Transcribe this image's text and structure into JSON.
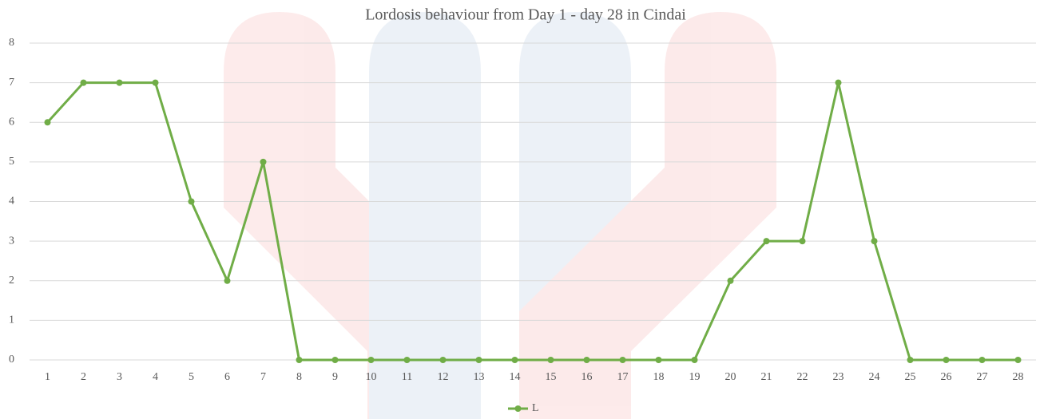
{
  "chart_data": {
    "type": "line",
    "title": "Lordosis behaviour from Day 1 - day 28 in Cindai",
    "categories": [
      "1",
      "2",
      "3",
      "4",
      "5",
      "6",
      "7",
      "8",
      "9",
      "10",
      "11",
      "12",
      "13",
      "14",
      "15",
      "16",
      "17",
      "18",
      "19",
      "20",
      "21",
      "22",
      "23",
      "24",
      "25",
      "26",
      "27",
      "28"
    ],
    "series": [
      {
        "name": "L",
        "color": "#70ad47",
        "values": [
          6,
          7,
          7,
          7,
          4,
          2,
          5,
          0,
          0,
          0,
          0,
          0,
          0,
          0,
          0,
          0,
          0,
          0,
          0,
          2,
          3,
          3,
          7,
          3,
          0,
          0,
          0,
          0
        ]
      }
    ],
    "ylim": [
      0,
      8
    ],
    "yticks": [
      0,
      1,
      2,
      3,
      4,
      5,
      6,
      7,
      8
    ],
    "grid": true,
    "legend": "bottom"
  }
}
